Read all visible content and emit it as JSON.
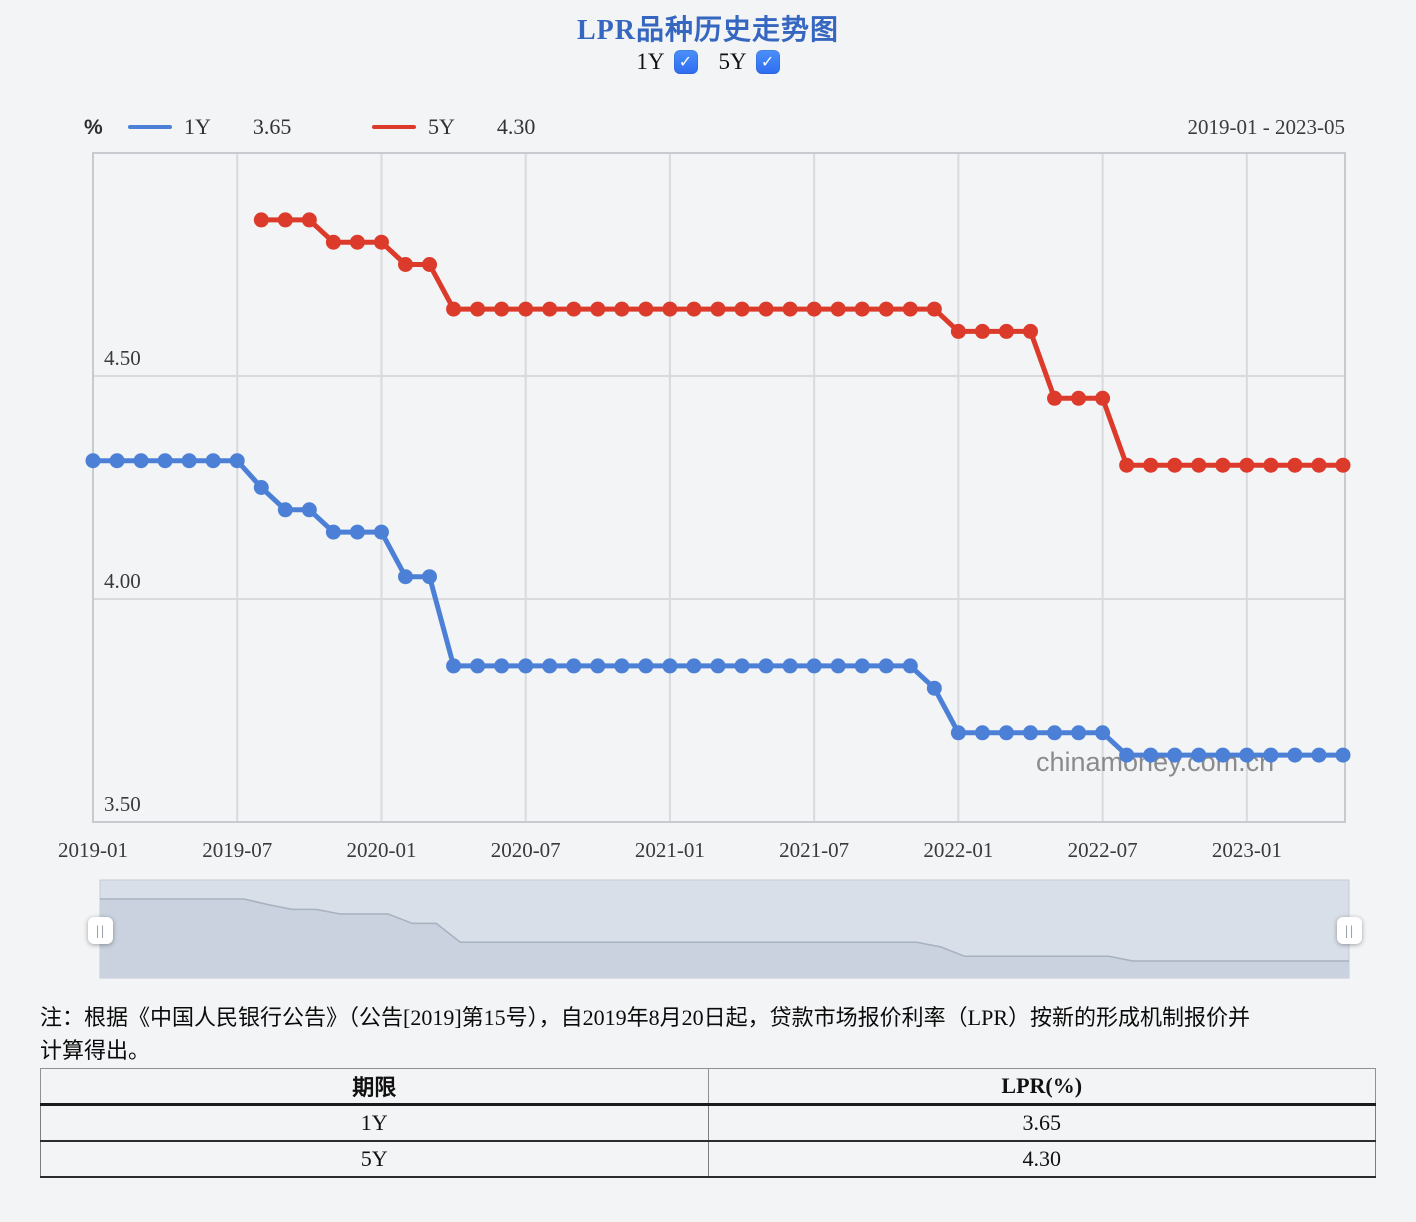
{
  "title": "LPR品种历史走势图",
  "controls": {
    "check_glyph": "✓",
    "items": [
      {
        "label": "1Y",
        "checked": true
      },
      {
        "label": "5Y",
        "checked": true
      }
    ]
  },
  "legend": {
    "unit": "%",
    "date_range": "2019-01 - 2023-05",
    "items": [
      {
        "name": "1Y",
        "value": "3.65",
        "color": "#4c80d6"
      },
      {
        "name": "5Y",
        "value": "4.30",
        "color": "#dc3b2b"
      }
    ]
  },
  "watermark": "chinamoney.com.cn",
  "chart_data": {
    "type": "line",
    "title": "LPR品种历史走势图",
    "unit": "%",
    "x_start": "2019-01",
    "x_end": "2023-05",
    "months_total": 53,
    "x_tick_labels": [
      "2019-01",
      "2019-07",
      "2020-01",
      "2020-07",
      "2021-01",
      "2021-07",
      "2022-01",
      "2022-07",
      "2023-01"
    ],
    "x_tick_indices": [
      0,
      6,
      12,
      18,
      24,
      30,
      36,
      42,
      48
    ],
    "y_ticks": [
      "4.50",
      "4.00",
      "3.50"
    ],
    "ylim": [
      3.5,
      5.0
    ],
    "grid": true,
    "legend_position": "top-left",
    "series": [
      {
        "name": "1Y",
        "color": "#4c80d6",
        "start_index": 0,
        "values": [
          4.31,
          4.31,
          4.31,
          4.31,
          4.31,
          4.31,
          4.31,
          4.25,
          4.2,
          4.2,
          4.15,
          4.15,
          4.15,
          4.05,
          4.05,
          3.85,
          3.85,
          3.85,
          3.85,
          3.85,
          3.85,
          3.85,
          3.85,
          3.85,
          3.85,
          3.85,
          3.85,
          3.85,
          3.85,
          3.85,
          3.85,
          3.85,
          3.85,
          3.85,
          3.85,
          3.8,
          3.7,
          3.7,
          3.7,
          3.7,
          3.7,
          3.7,
          3.7,
          3.65,
          3.65,
          3.65,
          3.65,
          3.65,
          3.65,
          3.65,
          3.65,
          3.65,
          3.65
        ]
      },
      {
        "name": "5Y",
        "color": "#dc3b2b",
        "start_index": 7,
        "values": [
          4.85,
          4.85,
          4.85,
          4.8,
          4.8,
          4.8,
          4.75,
          4.75,
          4.65,
          4.65,
          4.65,
          4.65,
          4.65,
          4.65,
          4.65,
          4.65,
          4.65,
          4.65,
          4.65,
          4.65,
          4.65,
          4.65,
          4.65,
          4.65,
          4.65,
          4.65,
          4.65,
          4.65,
          4.65,
          4.6,
          4.6,
          4.6,
          4.6,
          4.45,
          4.45,
          4.45,
          4.3,
          4.3,
          4.3,
          4.3,
          4.3,
          4.3,
          4.3,
          4.3,
          4.3,
          4.3
        ]
      }
    ]
  },
  "navigator": {
    "handle_glyph": "||"
  },
  "note": {
    "line1": "注：根据《中国人民银行公告》（公告[2019]第15号），自2019年8月20日起，贷款市场报价利率（LPR）按新的形成机制报价并",
    "line2": "计算得出。"
  },
  "table": {
    "headers": [
      "期限",
      "LPR(%)"
    ],
    "rows": [
      [
        "1Y",
        "3.65"
      ],
      [
        "5Y",
        "4.30"
      ]
    ]
  }
}
